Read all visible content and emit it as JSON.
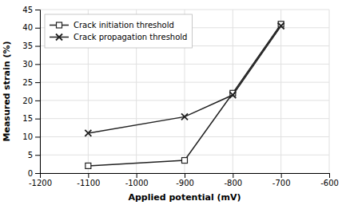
{
  "chart_data": {
    "type": "line",
    "x": [
      -1100,
      -900,
      -800,
      -700
    ],
    "series": [
      {
        "name": "Crack initiation threshold",
        "color": "#222222",
        "marker": "square",
        "values": [
          2,
          3.5,
          22,
          41
        ]
      },
      {
        "name": "Crack propagation threshold",
        "color": "#222222",
        "marker": "x",
        "values": [
          11,
          15.5,
          21.5,
          40.5
        ]
      }
    ],
    "xlabel": "Applied potential (mV)",
    "ylabel": "Measured strain (%)",
    "xlim": [
      -1200,
      -600
    ],
    "xticks": [
      -1200,
      -1100,
      -1000,
      -900,
      -800,
      -700,
      -600
    ],
    "ylim": [
      0,
      45
    ],
    "yticks": [
      0,
      5,
      10,
      15,
      20,
      25,
      30,
      35,
      40,
      45
    ],
    "grid": true,
    "legend": "top-left"
  }
}
